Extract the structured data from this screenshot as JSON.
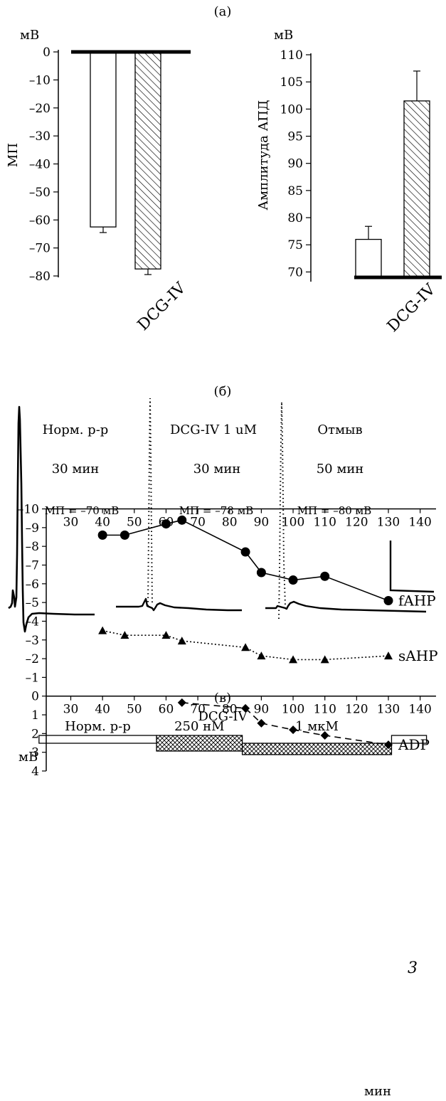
{
  "panel_a": {
    "label": "(а)",
    "category": "DCG-IV",
    "left": {
      "unit": "мВ",
      "ylabel": "МП"
    },
    "right": {
      "unit": "мВ",
      "ylabel": "Амплитуда АПД"
    }
  },
  "panel_b": {
    "label": "(б)",
    "traces": [
      {
        "title": "Норм. р-р",
        "time": "30 мин",
        "mp": "МП = –70 мВ"
      },
      {
        "title": "DCG-IV 1 uM",
        "time": "30 мин",
        "mp": "МП = –78 мВ"
      },
      {
        "title": "Отмыв",
        "time": "50 мин",
        "mp": "МП = –80 мВ"
      }
    ]
  },
  "panel_c": {
    "label": "(в)",
    "drug": "DCG-IV",
    "conditions": [
      {
        "label": "Норм. р-р",
        "start": 20,
        "end": 57
      },
      {
        "label": "250 нМ",
        "start": 57,
        "end": 84
      },
      {
        "label": "1 мкМ",
        "start": 84,
        "end": 131
      }
    ],
    "washout_end": 142,
    "unit": "мВ",
    "xunit": "мин",
    "figure_number": "3"
  },
  "chart_data": [
    {
      "type": "bar",
      "categories": [
        "",
        "DCG-IV"
      ],
      "values": [
        -62.5,
        -77.5
      ],
      "errors": [
        2,
        2
      ],
      "ylabel": "МП",
      "ylim": [
        -80,
        0
      ],
      "yticks": [
        0,
        -10,
        -20,
        -30,
        -40,
        -50,
        -60,
        -70,
        -80
      ],
      "tick_labels": [
        "0",
        "–10",
        "–20",
        "–30",
        "–40",
        "–50",
        "–60",
        "–70",
        "–80"
      ],
      "fills": [
        "open",
        "hatched"
      ]
    },
    {
      "type": "bar",
      "categories": [
        "",
        "DCG-IV"
      ],
      "values": [
        76,
        101.5
      ],
      "errors": [
        2.4,
        5.5
      ],
      "ylabel": "Амплитуда АПД",
      "ylim": [
        69,
        110
      ],
      "yticks": [
        70,
        75,
        80,
        85,
        90,
        95,
        100,
        105,
        110
      ],
      "tick_labels": [
        "70",
        "75",
        "80",
        "85",
        "90",
        "95",
        "100",
        "105",
        "110"
      ],
      "fills": [
        "open",
        "hatched"
      ]
    },
    {
      "type": "line",
      "xlim": [
        25,
        145
      ],
      "xticks": [
        30,
        40,
        50,
        60,
        70,
        80,
        90,
        100,
        110,
        120,
        130,
        140
      ],
      "ylim": [
        -10,
        4
      ],
      "yticks": [
        4,
        3,
        2,
        1,
        0,
        -1,
        -2,
        -3,
        -4,
        -5,
        -6,
        -7,
        -8,
        -9,
        -10
      ],
      "tick_labels": [
        "4",
        "3",
        "2",
        "1",
        "0",
        "–1",
        "–2",
        "–3",
        "–4",
        "–5",
        "–6",
        "–7",
        "–8",
        "–9",
        "–10"
      ],
      "xlabel": "мин",
      "ylabel": "мВ",
      "series": [
        {
          "name": "ADP",
          "marker": "diamond",
          "dash": "dashed",
          "x": [
            65,
            85,
            90,
            100,
            110,
            130
          ],
          "y": [
            0.35,
            0.65,
            1.45,
            1.8,
            2.1,
            2.6
          ]
        },
        {
          "name": "sAHP",
          "marker": "triangle",
          "dash": "dotted",
          "x": [
            40,
            47,
            60,
            65,
            85,
            90,
            100,
            110,
            130
          ],
          "y": [
            -3.5,
            -3.25,
            -3.25,
            -2.95,
            -2.6,
            -2.15,
            -1.95,
            -1.95,
            -2.15
          ]
        },
        {
          "name": "fAHP",
          "marker": "circle",
          "dash": "solid",
          "x": [
            40,
            47,
            60,
            65,
            85,
            90,
            100,
            110,
            130
          ],
          "y": [
            -8.6,
            -8.6,
            -9.2,
            -9.4,
            -7.7,
            -6.6,
            -6.2,
            -6.4,
            -5.1
          ]
        }
      ]
    }
  ]
}
